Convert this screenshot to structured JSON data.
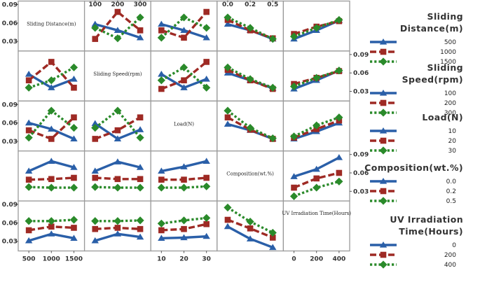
{
  "chart_data": {
    "type": "interaction-matrix",
    "description_free": true,
    "factors": [
      {
        "name": "Sliding Distance(m)",
        "diag_label": "Sliding Distance(m)",
        "legend_title": [
          "Sliding",
          "Distance(m)"
        ],
        "levels": [
          500,
          1000,
          1500
        ],
        "level_labels": [
          "500",
          "1000",
          "1500"
        ]
      },
      {
        "name": "Sliding Speed(rpm)",
        "diag_label": "Sliding Speed(rpm)",
        "legend_title": [
          "Sliding",
          "Speed(rpm)"
        ],
        "levels": [
          100,
          200,
          300
        ],
        "level_labels": [
          "100",
          "200",
          "300"
        ]
      },
      {
        "name": "Load(N)",
        "diag_label": "Load(N)",
        "legend_title": [
          "Load(N)"
        ],
        "levels": [
          10,
          20,
          30
        ],
        "level_labels": [
          "10",
          "20",
          "30"
        ]
      },
      {
        "name": "Composition(wt.%)",
        "diag_label": "Composition(wt.%)",
        "legend_title": [
          "Composition(wt.%)"
        ],
        "levels": [
          0.0,
          0.2,
          0.5
        ],
        "level_labels": [
          "0.0",
          "0.2",
          "0.5"
        ]
      },
      {
        "name": "UV Irradiation Time(Hours)",
        "diag_label": "UV Irradiation Time(Hours)",
        "legend_title": [
          "UV Irradiation",
          "Time(Hours)"
        ],
        "levels": [
          0,
          200,
          400
        ],
        "level_labels": [
          "0",
          "200",
          "400"
        ]
      }
    ],
    "y_range": [
      0.02,
      0.09
    ],
    "y_ticks": [
      0.03,
      0.06,
      0.09
    ],
    "y_tick_labels": [
      "0.03",
      "0.06",
      "0.09"
    ],
    "top_axis": [
      {
        "col": 1,
        "labels": [
          "100",
          "200",
          "300"
        ]
      },
      {
        "col": 3,
        "labels": [
          "0.0",
          "0.2",
          "0.5"
        ]
      }
    ],
    "bottom_axis": [
      {
        "col": 0,
        "labels": [
          "500",
          "1000",
          "1500"
        ]
      },
      {
        "col": 2,
        "labels": [
          "10",
          "20",
          "30"
        ]
      },
      {
        "col": 4,
        "labels": [
          "0",
          "200",
          "400"
        ]
      }
    ],
    "left_axis_rows": [
      0,
      2,
      4
    ],
    "right_axis_rows": [
      1,
      3
    ],
    "series_style": [
      {
        "color": "#2a5fa8",
        "marker": "triangle",
        "dash": "solid"
      },
      {
        "color": "#9e2a24",
        "marker": "square",
        "dash": "dashed"
      },
      {
        "color": "#2a8a2a",
        "marker": "diamond",
        "dash": "dotted"
      }
    ],
    "panels": [
      {
        "row": 0,
        "col": 1,
        "series": [
          [
            0.058,
            0.048,
            0.036
          ],
          [
            0.034,
            0.078,
            0.048
          ],
          [
            0.052,
            0.035,
            0.069
          ]
        ]
      },
      {
        "row": 0,
        "col": 2,
        "series": [
          [
            0.058,
            0.048,
            0.036
          ],
          [
            0.048,
            0.036,
            0.078
          ],
          [
            0.036,
            0.069,
            0.052
          ]
        ]
      },
      {
        "row": 0,
        "col": 3,
        "series": [
          [
            0.058,
            0.048,
            0.034
          ],
          [
            0.065,
            0.048,
            0.035
          ],
          [
            0.069,
            0.052,
            0.034
          ]
        ]
      },
      {
        "row": 0,
        "col": 4,
        "series": [
          [
            0.034,
            0.048,
            0.064
          ],
          [
            0.042,
            0.054,
            0.063
          ],
          [
            0.038,
            0.052,
            0.065
          ]
        ]
      },
      {
        "row": 1,
        "col": 0,
        "series": [
          [
            0.058,
            0.036,
            0.05
          ],
          [
            0.048,
            0.078,
            0.036
          ],
          [
            0.036,
            0.048,
            0.069
          ]
        ]
      },
      {
        "row": 1,
        "col": 2,
        "series": [
          [
            0.058,
            0.036,
            0.05
          ],
          [
            0.034,
            0.048,
            0.078
          ],
          [
            0.048,
            0.069,
            0.036
          ]
        ]
      },
      {
        "row": 1,
        "col": 3,
        "series": [
          [
            0.06,
            0.048,
            0.035
          ],
          [
            0.065,
            0.048,
            0.034
          ],
          [
            0.069,
            0.05,
            0.036
          ]
        ]
      },
      {
        "row": 1,
        "col": 4,
        "series": [
          [
            0.034,
            0.048,
            0.064
          ],
          [
            0.042,
            0.052,
            0.063
          ],
          [
            0.038,
            0.052,
            0.064
          ]
        ]
      },
      {
        "row": 2,
        "col": 0,
        "series": [
          [
            0.06,
            0.05,
            0.034
          ],
          [
            0.048,
            0.034,
            0.069
          ],
          [
            0.036,
            0.08,
            0.052
          ]
        ]
      },
      {
        "row": 2,
        "col": 1,
        "series": [
          [
            0.059,
            0.034,
            0.049
          ],
          [
            0.034,
            0.048,
            0.069
          ],
          [
            0.052,
            0.08,
            0.036
          ]
        ]
      },
      {
        "row": 2,
        "col": 3,
        "series": [
          [
            0.058,
            0.048,
            0.034
          ],
          [
            0.069,
            0.049,
            0.034
          ],
          [
            0.08,
            0.052,
            0.035
          ]
        ]
      },
      {
        "row": 2,
        "col": 4,
        "series": [
          [
            0.034,
            0.046,
            0.06
          ],
          [
            0.036,
            0.05,
            0.064
          ],
          [
            0.038,
            0.056,
            0.069
          ]
        ]
      },
      {
        "row": 3,
        "col": 0,
        "series": [
          [
            0.063,
            0.079,
            0.069
          ],
          [
            0.049,
            0.05,
            0.052
          ],
          [
            0.037,
            0.036,
            0.036
          ]
        ]
      },
      {
        "row": 3,
        "col": 1,
        "series": [
          [
            0.063,
            0.078,
            0.069
          ],
          [
            0.052,
            0.05,
            0.05
          ],
          [
            0.037,
            0.036,
            0.036
          ]
        ]
      },
      {
        "row": 3,
        "col": 2,
        "series": [
          [
            0.063,
            0.07,
            0.079
          ],
          [
            0.049,
            0.049,
            0.052
          ],
          [
            0.036,
            0.036,
            0.038
          ]
        ]
      },
      {
        "row": 3,
        "col": 4,
        "series": [
          [
            0.054,
            0.066,
            0.085
          ],
          [
            0.036,
            0.051,
            0.06
          ],
          [
            0.022,
            0.036,
            0.046
          ]
        ]
      },
      {
        "row": 4,
        "col": 0,
        "series": [
          [
            0.031,
            0.042,
            0.035
          ],
          [
            0.048,
            0.054,
            0.052
          ],
          [
            0.063,
            0.063,
            0.065
          ]
        ]
      },
      {
        "row": 4,
        "col": 1,
        "series": [
          [
            0.031,
            0.042,
            0.037
          ],
          [
            0.05,
            0.052,
            0.05
          ],
          [
            0.063,
            0.063,
            0.064
          ]
        ]
      },
      {
        "row": 4,
        "col": 2,
        "series": [
          [
            0.035,
            0.036,
            0.038
          ],
          [
            0.048,
            0.05,
            0.058
          ],
          [
            0.059,
            0.064,
            0.068
          ]
        ]
      },
      {
        "row": 4,
        "col": 3,
        "series": [
          [
            0.054,
            0.034,
            0.02
          ],
          [
            0.065,
            0.051,
            0.036
          ],
          [
            0.085,
            0.062,
            0.044
          ]
        ]
      }
    ]
  }
}
